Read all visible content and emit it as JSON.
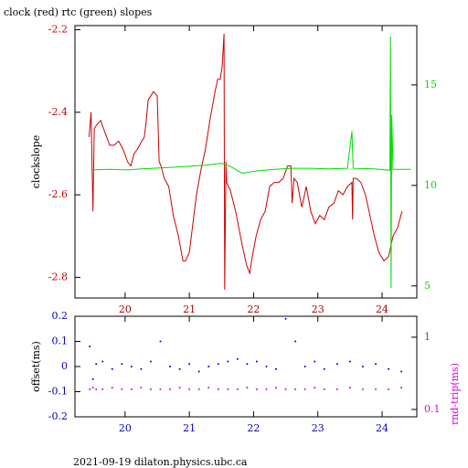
{
  "chart_data": [
    {
      "type": "line",
      "title": "clock (red) rtc (green) slopes",
      "ylabel": "clockslope",
      "xlim": [
        19.22,
        24.54
      ],
      "xticks": [
        20,
        21,
        22,
        23,
        24
      ],
      "ylim": [
        -2.85,
        -2.19
      ],
      "yticks": [
        -2.8,
        -2.6,
        -2.4,
        -2.2
      ],
      "y2lim": [
        4.4,
        17.95
      ],
      "y2ticks": [
        5,
        10,
        15
      ],
      "x_tick_color": "#aa0000",
      "y_tick_color": "#cc0000",
      "y2_tick_color": "#00dd00",
      "series": [
        {
          "name": "clock",
          "color": "#cc0000",
          "x": [
            19.44,
            19.47,
            19.49,
            19.5,
            19.52,
            19.56,
            19.62,
            19.69,
            19.76,
            19.83,
            19.9,
            19.97,
            20.04,
            20.09,
            20.14,
            20.19,
            20.26,
            20.3,
            20.33,
            20.36,
            20.4,
            20.44,
            20.5,
            20.53,
            20.56,
            20.61,
            20.68,
            20.75,
            20.83,
            20.9,
            20.94,
            21.0,
            21.04,
            21.11,
            21.18,
            21.25,
            21.32,
            21.4,
            21.44,
            21.48,
            21.51,
            21.54,
            21.55,
            21.57,
            21.58,
            21.64,
            21.72,
            21.82,
            21.89,
            21.94,
            21.98,
            22.04,
            22.11,
            22.18,
            22.25,
            22.32,
            22.39,
            22.46,
            22.53,
            22.58,
            22.6,
            22.63,
            22.68,
            22.75,
            22.82,
            22.89,
            22.96,
            23.03,
            23.1,
            23.17,
            23.25,
            23.32,
            23.39,
            23.46,
            23.53,
            23.54,
            23.55,
            23.6,
            23.67,
            23.74,
            23.81,
            23.88,
            23.95,
            24.03,
            24.1,
            24.17,
            24.24,
            24.31
          ],
          "values": [
            -2.46,
            -2.4,
            -2.56,
            -2.64,
            -2.44,
            -2.43,
            -2.42,
            -2.45,
            -2.48,
            -2.48,
            -2.47,
            -2.49,
            -2.52,
            -2.53,
            -2.5,
            -2.49,
            -2.47,
            -2.46,
            -2.42,
            -2.37,
            -2.36,
            -2.35,
            -2.36,
            -2.52,
            -2.53,
            -2.56,
            -2.58,
            -2.65,
            -2.7,
            -2.76,
            -2.76,
            -2.74,
            -2.69,
            -2.6,
            -2.54,
            -2.49,
            -2.42,
            -2.35,
            -2.32,
            -2.32,
            -2.29,
            -2.21,
            -2.83,
            -2.52,
            -2.57,
            -2.59,
            -2.64,
            -2.72,
            -2.77,
            -2.79,
            -2.75,
            -2.7,
            -2.66,
            -2.64,
            -2.58,
            -2.57,
            -2.57,
            -2.56,
            -2.53,
            -2.53,
            -2.62,
            -2.56,
            -2.57,
            -2.63,
            -2.58,
            -2.64,
            -2.67,
            -2.65,
            -2.66,
            -2.63,
            -2.62,
            -2.59,
            -2.6,
            -2.58,
            -2.57,
            -2.66,
            -2.56,
            -2.56,
            -2.57,
            -2.6,
            -2.65,
            -2.7,
            -2.74,
            -2.76,
            -2.75,
            -2.7,
            -2.68,
            -2.64
          ]
        },
        {
          "name": "rtc",
          "color": "#00dd00",
          "axis": "y2",
          "x": [
            19.47,
            19.76,
            20.04,
            20.26,
            20.5,
            20.75,
            21.0,
            21.25,
            21.5,
            21.64,
            21.82,
            22.04,
            22.32,
            22.6,
            22.89,
            23.17,
            23.46,
            23.53,
            23.55,
            23.88,
            24.12,
            24.13,
            24.14,
            24.15,
            24.17,
            24.45
          ],
          "values": [
            10.77,
            10.8,
            10.77,
            10.82,
            10.86,
            10.9,
            10.95,
            11.0,
            11.1,
            10.95,
            10.6,
            10.72,
            10.8,
            10.85,
            10.85,
            10.82,
            10.85,
            12.7,
            10.85,
            10.82,
            10.75,
            17.4,
            4.9,
            13.5,
            10.8,
            10.8
          ]
        }
      ]
    },
    {
      "type": "scatter",
      "ylabel": "offset(ms)",
      "y2label": "rnd-trip(ms)",
      "y2log": true,
      "xlim": [
        19.22,
        24.54
      ],
      "xticks": [
        20,
        21,
        22,
        23,
        24
      ],
      "ylim": [
        -0.2,
        0.2
      ],
      "yticks": [
        -0.2,
        -0.1,
        0,
        0.1,
        0.2
      ],
      "y2lim": [
        0.079,
        1.95
      ],
      "y2ticks": [
        0.1,
        1
      ],
      "x_tick_color": "#0000cc",
      "y_tick_color": "#0000cc",
      "y2_tick_color": "#dd00dd",
      "series": [
        {
          "name": "offset",
          "color": "#0000cc",
          "x": [
            19.45,
            19.5,
            19.55,
            19.65,
            19.8,
            19.95,
            20.1,
            20.25,
            20.4,
            20.55,
            20.7,
            20.85,
            21.0,
            21.15,
            21.3,
            21.45,
            21.6,
            21.75,
            21.9,
            22.05,
            22.2,
            22.35,
            22.5,
            22.65,
            22.8,
            22.95,
            23.1,
            23.3,
            23.5,
            23.7,
            23.9,
            24.1,
            24.3
          ],
          "values": [
            0.08,
            -0.05,
            0.01,
            0.02,
            -0.01,
            0.01,
            0,
            -0.01,
            0.02,
            0.1,
            0,
            -0.01,
            0.01,
            -0.02,
            0,
            0.01,
            0.02,
            0.03,
            0.01,
            0.02,
            0,
            -0.01,
            0.19,
            0.1,
            0,
            0.02,
            -0.01,
            0.01,
            0.02,
            0,
            0.01,
            -0.01,
            -0.02
          ]
        },
        {
          "name": "rnd-trip",
          "color": "#dd00dd",
          "axis": "y2",
          "x": [
            19.45,
            19.5,
            19.55,
            19.65,
            19.8,
            19.95,
            20.1,
            20.25,
            20.4,
            20.55,
            20.7,
            20.85,
            21.0,
            21.15,
            21.3,
            21.45,
            21.6,
            21.75,
            21.9,
            22.05,
            22.2,
            22.35,
            22.5,
            22.65,
            22.8,
            22.95,
            23.1,
            23.3,
            23.5,
            23.7,
            23.9,
            24.1,
            24.3
          ],
          "values": [
            0.19,
            0.2,
            0.19,
            0.19,
            0.2,
            0.19,
            0.19,
            0.2,
            0.19,
            0.19,
            0.19,
            0.2,
            0.19,
            0.19,
            0.2,
            0.19,
            0.19,
            0.19,
            0.2,
            0.19,
            0.19,
            0.2,
            0.19,
            0.19,
            0.19,
            0.2,
            0.19,
            0.19,
            0.2,
            0.19,
            0.19,
            0.19,
            0.2
          ]
        }
      ]
    }
  ],
  "footer": "2021-09-19  dilaton.physics.ubc.ca"
}
